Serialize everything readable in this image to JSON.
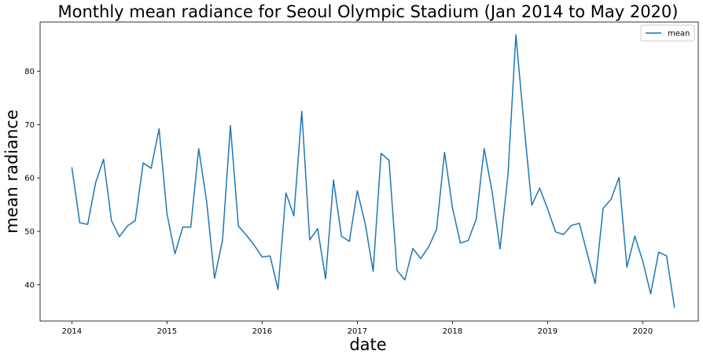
{
  "chart_data": {
    "type": "line",
    "title": "Monthly mean radiance for Seoul Olympic Stadium (Jan 2014 to May 2020)",
    "xlabel": "date",
    "ylabel": "mean radiance",
    "x_ticks": [
      "2014",
      "2015",
      "2016",
      "2017",
      "2018",
      "2019",
      "2020"
    ],
    "y_ticks": [
      40,
      50,
      60,
      70,
      80
    ],
    "xlim": [
      "2013-09",
      "2020-08"
    ],
    "ylim": [
      33.2,
      89.2
    ],
    "grid": false,
    "legend_position": "top-right",
    "series": [
      {
        "name": "mean",
        "color": "#1f77b4",
        "x": [
          "2014-01",
          "2014-02",
          "2014-03",
          "2014-04",
          "2014-05",
          "2014-06",
          "2014-07",
          "2014-08",
          "2014-09",
          "2014-10",
          "2014-11",
          "2014-12",
          "2015-01",
          "2015-02",
          "2015-03",
          "2015-04",
          "2015-05",
          "2015-06",
          "2015-07",
          "2015-08",
          "2015-09",
          "2015-10",
          "2015-11",
          "2015-12",
          "2016-01",
          "2016-02",
          "2016-03",
          "2016-04",
          "2016-05",
          "2016-06",
          "2016-07",
          "2016-08",
          "2016-09",
          "2016-10",
          "2016-11",
          "2016-12",
          "2017-01",
          "2017-02",
          "2017-03",
          "2017-04",
          "2017-05",
          "2017-06",
          "2017-07",
          "2017-08",
          "2017-09",
          "2017-10",
          "2017-11",
          "2017-12",
          "2018-01",
          "2018-02",
          "2018-03",
          "2018-04",
          "2018-05",
          "2018-06",
          "2018-07",
          "2018-08",
          "2018-09",
          "2018-10",
          "2018-11",
          "2018-12",
          "2019-01",
          "2019-02",
          "2019-03",
          "2019-04",
          "2019-05",
          "2019-06",
          "2019-07",
          "2019-08",
          "2019-09",
          "2019-10",
          "2019-11",
          "2019-12",
          "2020-01",
          "2020-02",
          "2020-03",
          "2020-04",
          "2020-05"
        ],
        "values": [
          62.0,
          51.6,
          51.3,
          59.1,
          63.5,
          52.0,
          49.0,
          51.0,
          52.0,
          62.8,
          61.8,
          69.2,
          53.3,
          45.8,
          50.8,
          50.8,
          65.5,
          55.6,
          41.2,
          48.3,
          69.8,
          51.0,
          49.3,
          47.4,
          45.2,
          45.4,
          39.1,
          57.2,
          52.9,
          72.5,
          48.4,
          50.5,
          41.1,
          59.6,
          49.1,
          48.1,
          57.6,
          51.4,
          42.5,
          64.6,
          63.3,
          42.7,
          40.9,
          46.8,
          44.9,
          47.1,
          50.4,
          64.8,
          54.4,
          47.8,
          48.3,
          52.3,
          65.5,
          57.4,
          46.7,
          60.6,
          86.8,
          70.3,
          54.9,
          58.1,
          54.2,
          49.9,
          49.4,
          51.1,
          51.5,
          45.8,
          40.2,
          54.3,
          56.0,
          60.1,
          43.3,
          49.1,
          44.4,
          38.3,
          46.1,
          45.4,
          35.7
        ]
      }
    ]
  }
}
